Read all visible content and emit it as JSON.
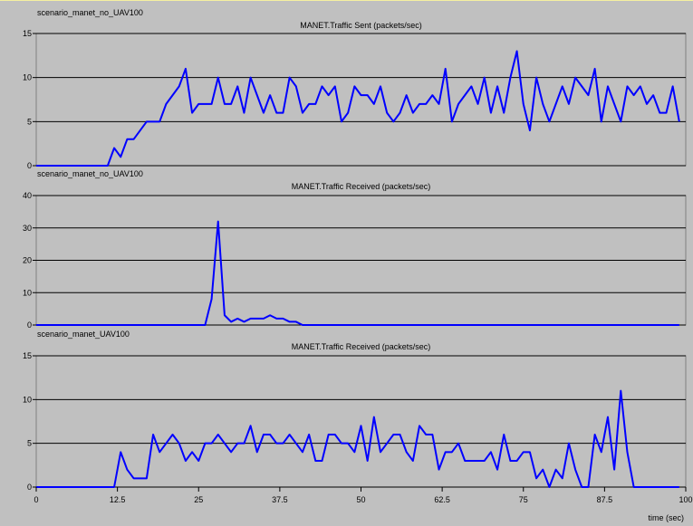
{
  "colors": {
    "background": "#c0c0c0",
    "series_line": "#0000ff",
    "gridline": "#000000",
    "plot_border": "#808080"
  },
  "chart_data": [
    {
      "type": "line",
      "scenario_label": "scenario_manet_no_UAV100",
      "title": "MANET.Traffic Sent (packets/sec)",
      "xlim": [
        0,
        100
      ],
      "ylim": [
        0,
        15
      ],
      "yticks": [
        "0",
        "5",
        "10",
        "15"
      ],
      "grid": true,
      "series": [
        {
          "x": [
            0,
            11,
            12,
            13,
            14,
            15,
            16,
            17,
            18,
            19,
            20,
            21,
            22,
            23,
            24,
            25,
            26,
            27,
            28,
            29,
            30,
            31,
            32,
            33,
            34,
            35,
            36,
            37,
            38,
            39,
            40,
            41,
            42,
            43,
            44,
            45,
            46,
            47,
            48,
            49,
            50,
            51,
            52,
            53,
            54,
            55,
            56,
            57,
            58,
            59,
            60,
            61,
            62,
            63,
            64,
            65,
            66,
            67,
            68,
            69,
            70,
            71,
            72,
            73,
            74,
            75,
            76,
            77,
            78,
            79,
            80,
            81,
            82,
            83,
            84,
            85,
            86,
            87,
            88,
            89,
            90,
            91,
            92,
            93,
            94,
            95,
            96,
            97,
            98,
            99
          ],
          "values": [
            0,
            0,
            2,
            1,
            3,
            3,
            4,
            5,
            5,
            5,
            7,
            8,
            9,
            11,
            6,
            7,
            7,
            7,
            10,
            7,
            7,
            9,
            6,
            10,
            8,
            6,
            8,
            6,
            6,
            10,
            9,
            6,
            7,
            7,
            9,
            8,
            9,
            5,
            6,
            9,
            8,
            8,
            7,
            9,
            6,
            5,
            6,
            8,
            6,
            7,
            7,
            8,
            7,
            11,
            5,
            7,
            8,
            9,
            7,
            10,
            6,
            9,
            6,
            10,
            13,
            7,
            4,
            10,
            7,
            5,
            7,
            9,
            7,
            10,
            9,
            8,
            11,
            5,
            9,
            7,
            5,
            9,
            8,
            9,
            7,
            8,
            6,
            6,
            9,
            5
          ]
        }
      ]
    },
    {
      "type": "line",
      "scenario_label": "scenario_manet_no_UAV100",
      "title": "MANET.Traffic Received (packets/sec)",
      "xlim": [
        0,
        100
      ],
      "ylim": [
        0,
        40
      ],
      "yticks": [
        "0",
        "10",
        "20",
        "30",
        "40"
      ],
      "grid": true,
      "series": [
        {
          "x": [
            0,
            26,
            27,
            28,
            29,
            30,
            31,
            32,
            33,
            34,
            35,
            36,
            37,
            38,
            39,
            40,
            41,
            99
          ],
          "values": [
            0,
            0,
            8,
            32,
            3,
            1,
            2,
            1,
            2,
            2,
            2,
            3,
            2,
            2,
            1,
            1,
            0,
            0
          ]
        }
      ]
    },
    {
      "type": "line",
      "scenario_label": "scenario_manet_UAV100",
      "title": "MANET.Traffic Received (packets/sec)",
      "xlim": [
        0,
        100
      ],
      "ylim": [
        0,
        15
      ],
      "yticks": [
        "0",
        "5",
        "10",
        "15"
      ],
      "xticks": [
        "0",
        "12.5",
        "25",
        "37.5",
        "50",
        "62.5",
        "75",
        "87.5",
        "100"
      ],
      "xlabel": "time (sec)",
      "grid": true,
      "series": [
        {
          "x": [
            0,
            12,
            13,
            14,
            15,
            16,
            17,
            18,
            19,
            20,
            21,
            22,
            23,
            24,
            25,
            26,
            27,
            28,
            29,
            30,
            31,
            32,
            33,
            34,
            35,
            36,
            37,
            38,
            39,
            40,
            41,
            42,
            43,
            44,
            45,
            46,
            47,
            48,
            49,
            50,
            51,
            52,
            53,
            54,
            55,
            56,
            57,
            58,
            59,
            60,
            61,
            62,
            63,
            64,
            65,
            66,
            67,
            68,
            69,
            70,
            71,
            72,
            73,
            74,
            75,
            76,
            77,
            78,
            79,
            80,
            81,
            82,
            83,
            84,
            85,
            86,
            87,
            88,
            89,
            90,
            91,
            92,
            93,
            94,
            95,
            96,
            97,
            98,
            99
          ],
          "values": [
            0,
            0,
            4,
            2,
            1,
            1,
            1,
            6,
            4,
            5,
            6,
            5,
            3,
            4,
            3,
            5,
            5,
            6,
            5,
            4,
            5,
            5,
            7,
            4,
            6,
            6,
            5,
            5,
            6,
            5,
            4,
            6,
            3,
            3,
            6,
            6,
            5,
            5,
            4,
            7,
            3,
            8,
            4,
            5,
            6,
            6,
            4,
            3,
            7,
            6,
            6,
            2,
            4,
            4,
            5,
            3,
            3,
            3,
            3,
            4,
            2,
            6,
            3,
            3,
            4,
            4,
            1,
            2,
            0,
            2,
            1,
            5,
            2,
            0,
            0,
            6,
            4,
            8,
            2,
            11,
            4,
            0,
            0,
            0,
            0,
            0,
            0,
            0,
            0
          ]
        }
      ]
    }
  ]
}
